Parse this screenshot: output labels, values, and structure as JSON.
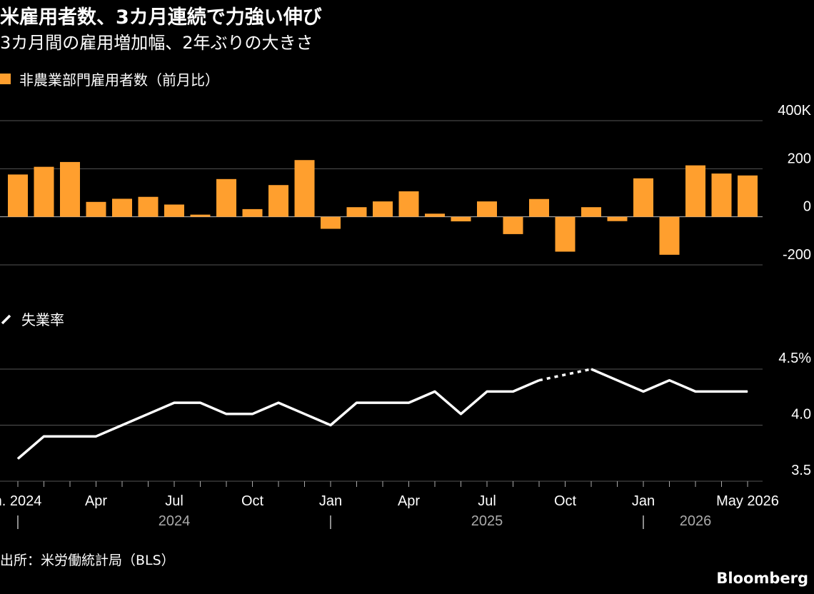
{
  "header": {
    "title": "米雇用者数、3カ月連続で力強い伸び",
    "subtitle": "3カ月間の雇用増加幅、2年ぶりの大きさ"
  },
  "footer": {
    "source": "出所：米労働統計局（BLS）",
    "brand": "Bloomberg"
  },
  "colors": {
    "bar": "#ff9f2e",
    "line": "#ffffff",
    "grid": "#555555",
    "background": "#000000"
  },
  "chart_data": [
    {
      "type": "bar",
      "legend": "非農業部門雇用者数（前月比）",
      "ylim": [
        -200,
        400
      ],
      "yticks": [
        400,
        200,
        0,
        -200
      ],
      "ytick_labels": [
        "400K",
        "200",
        "0",
        "-200"
      ],
      "x": [
        "2024-01",
        "2024-02",
        "2024-03",
        "2024-04",
        "2024-05",
        "2024-06",
        "2024-07",
        "2024-08",
        "2024-09",
        "2024-10",
        "2024-11",
        "2024-12",
        "2025-01",
        "2025-02",
        "2025-03",
        "2025-04",
        "2025-05",
        "2025-06",
        "2025-07",
        "2025-08",
        "2025-09",
        "2025-10",
        "2025-11",
        "2025-12",
        "2026-01",
        "2026-02",
        "2026-03",
        "2026-04",
        "2026-05"
      ],
      "values": [
        176,
        208,
        228,
        62,
        75,
        83,
        51,
        9,
        157,
        32,
        132,
        236,
        -50,
        40,
        64,
        106,
        13,
        -19,
        64,
        -72,
        74,
        -145,
        40,
        -18,
        160,
        -158,
        214,
        180,
        172
      ]
    },
    {
      "type": "line",
      "legend": "失業率",
      "ylim": [
        3.5,
        4.5
      ],
      "yticks": [
        4.5,
        4.0,
        3.5
      ],
      "ytick_labels": [
        "4.5%",
        "4.0",
        "3.5"
      ],
      "x": [
        "2024-01",
        "2024-02",
        "2024-03",
        "2024-04",
        "2024-05",
        "2024-06",
        "2024-07",
        "2024-08",
        "2024-09",
        "2024-10",
        "2024-11",
        "2024-12",
        "2025-01",
        "2025-02",
        "2025-03",
        "2025-04",
        "2025-05",
        "2025-06",
        "2025-07",
        "2025-08",
        "2025-09",
        "2025-10",
        "2025-11",
        "2025-12",
        "2026-01",
        "2026-02",
        "2026-03",
        "2026-04",
        "2026-05"
      ],
      "values": [
        3.7,
        3.9,
        3.9,
        3.9,
        4.0,
        4.1,
        4.2,
        4.2,
        4.1,
        4.1,
        4.2,
        4.1,
        4.0,
        4.2,
        4.2,
        4.2,
        4.3,
        4.1,
        4.3,
        4.3,
        4.4,
        null,
        4.5,
        4.4,
        4.3,
        4.4,
        4.3,
        4.3,
        4.3
      ],
      "dashed_gap": "2025-10"
    }
  ],
  "xaxis": {
    "ticks": [
      {
        "x": "2024-01",
        "label": "n. 2024"
      },
      {
        "x": "2024-04",
        "label": "Apr"
      },
      {
        "x": "2024-07",
        "label": "Jul"
      },
      {
        "x": "2024-10",
        "label": "Oct"
      },
      {
        "x": "2025-01",
        "label": "Jan"
      },
      {
        "x": "2025-04",
        "label": "Apr"
      },
      {
        "x": "2025-07",
        "label": "Jul"
      },
      {
        "x": "2025-10",
        "label": "Oct"
      },
      {
        "x": "2026-01",
        "label": "Jan"
      },
      {
        "x": "2026-05",
        "label": "May 2026"
      }
    ],
    "years": [
      {
        "x": "2024-07",
        "label": "2024"
      },
      {
        "x": "2025-07",
        "label": "2025"
      },
      {
        "x": "2026-03",
        "label": "2026"
      }
    ],
    "separator_marks": [
      {
        "x": "2024-01",
        "label": "|"
      },
      {
        "x": "2025-01",
        "label": "|"
      },
      {
        "x": "2026-01",
        "label": "|"
      }
    ]
  }
}
